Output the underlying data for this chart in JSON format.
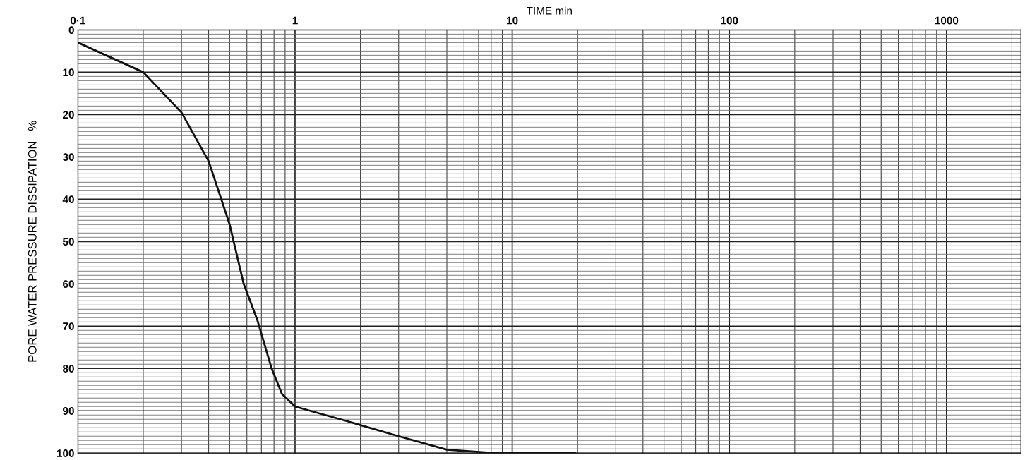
{
  "chart_data": {
    "type": "line",
    "xlabel": "TIME min",
    "ylabel": "PORE WATER PRESSURE DISSIPATION   %",
    "x": [
      0.1,
      0.2,
      0.3,
      0.4,
      0.5,
      0.58,
      0.67,
      0.78,
      0.87,
      1,
      1.75,
      2.9,
      5,
      8.3,
      19.5
    ],
    "series": [
      {
        "color": "#111111",
        "values": [
          3,
          10,
          19.5,
          31,
          46,
          60,
          68.5,
          80,
          86,
          89,
          92.5,
          95.8,
          99.2,
          100,
          100
        ]
      }
    ],
    "log": "x",
    "xlim": [
      0.1,
      2200
    ],
    "xticks": [
      {
        "value": 0.1,
        "label": "0·1"
      },
      1,
      10,
      100,
      1000
    ],
    "ylim": [
      100,
      0
    ],
    "yticks": [
      0,
      10,
      20,
      30,
      40,
      50,
      60,
      70,
      80,
      90,
      100
    ],
    "grid": true,
    "marker": "none",
    "line_style": "solid"
  }
}
